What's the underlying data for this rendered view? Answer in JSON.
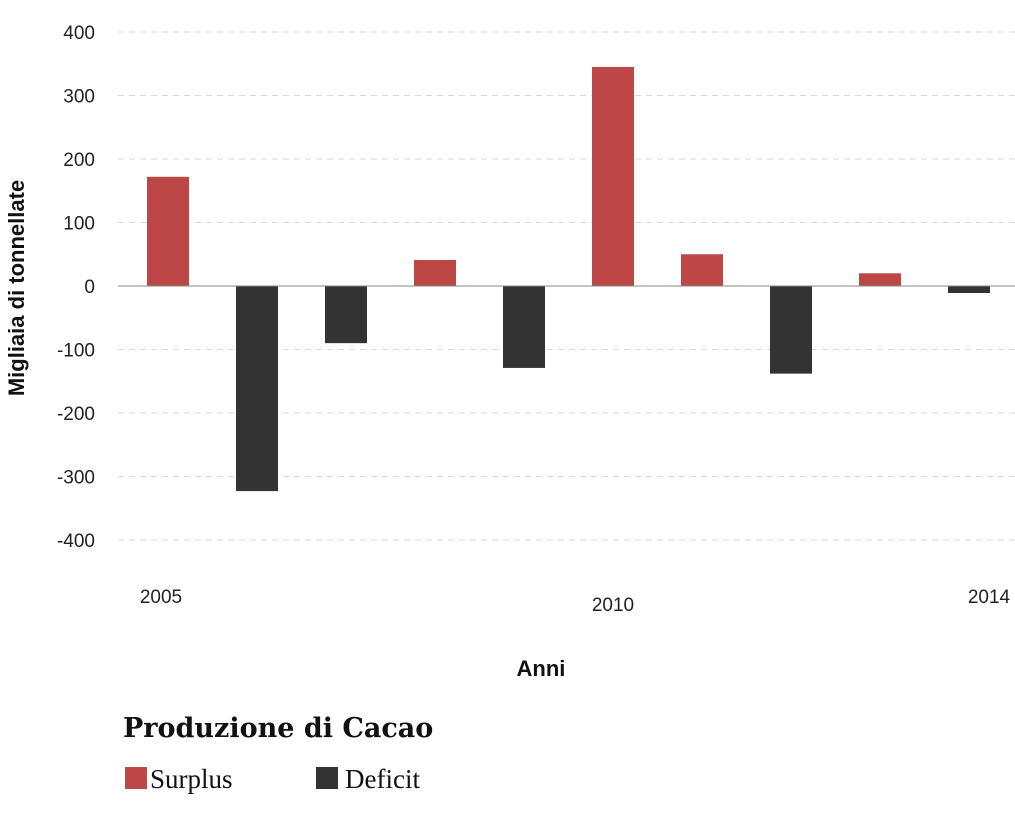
{
  "chart_data": {
    "type": "bar",
    "title": "",
    "xlabel": "Anni",
    "ylabel": "Migliaia di tonnellate",
    "ylim": [
      -400,
      400
    ],
    "yticks": [
      400,
      300,
      200,
      100,
      0,
      -100,
      -200,
      -300,
      -400
    ],
    "grid": true,
    "categories": [
      "2005",
      "2006",
      "2007",
      "2008",
      "2009",
      "2010",
      "2011",
      "2012",
      "2013",
      "2014"
    ],
    "x_tick_labels": [
      {
        "category": "2005",
        "label": "2005"
      },
      {
        "category": "2010",
        "label": "2010"
      },
      {
        "category": "2014",
        "label": "2014"
      }
    ],
    "values": [
      172,
      -323,
      -90,
      41,
      -129,
      345,
      50,
      -138,
      20,
      -11
    ],
    "series": [
      {
        "name": "Surplus",
        "color": "#bd4646"
      },
      {
        "name": "Deficit",
        "color": "#333333"
      }
    ],
    "legend": {
      "title": "Produzione di Cacao",
      "position": "bottom-left",
      "items": [
        "Surplus",
        "Deficit"
      ]
    }
  }
}
